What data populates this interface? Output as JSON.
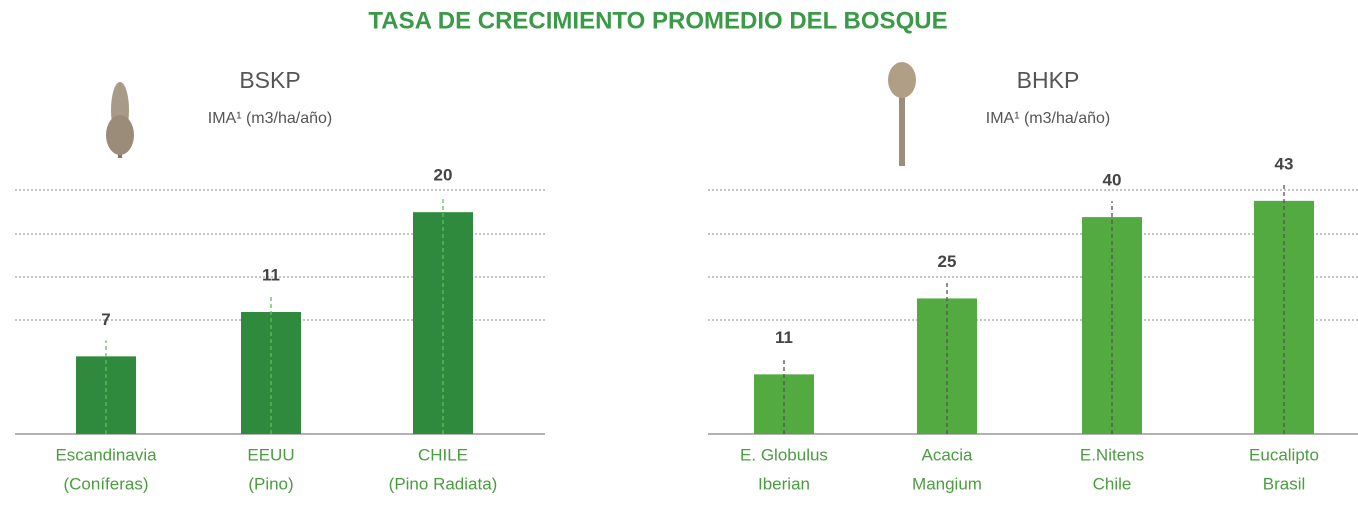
{
  "title": "TASA DE CRECIMIENTO PROMEDIO DEL BOSQUE",
  "chart_data": [
    {
      "type": "bar",
      "title": "BSKP",
      "subtitle": "IMA¹ (m3/ha/año)",
      "categories": [
        [
          "Escandinavia",
          "(Coníferas)"
        ],
        [
          "EEUU",
          "(Pino)"
        ],
        [
          "CHILE",
          "(Pino Radiata)"
        ]
      ],
      "values": [
        7,
        11,
        20
      ],
      "color": "#2f8a3d",
      "ylim": [
        0,
        22
      ]
    },
    {
      "type": "bar",
      "title": "BHKP",
      "subtitle": "IMA¹ (m3/ha/año)",
      "categories": [
        [
          "E. Globulus",
          "Iberian"
        ],
        [
          "Acacia",
          "Mangium"
        ],
        [
          "E.Nitens",
          "Chile"
        ],
        [
          "Eucalipto",
          "Brasil"
        ]
      ],
      "values": [
        11,
        25,
        40,
        43
      ],
      "color": "#52aa40",
      "ylim": [
        0,
        45
      ]
    }
  ]
}
